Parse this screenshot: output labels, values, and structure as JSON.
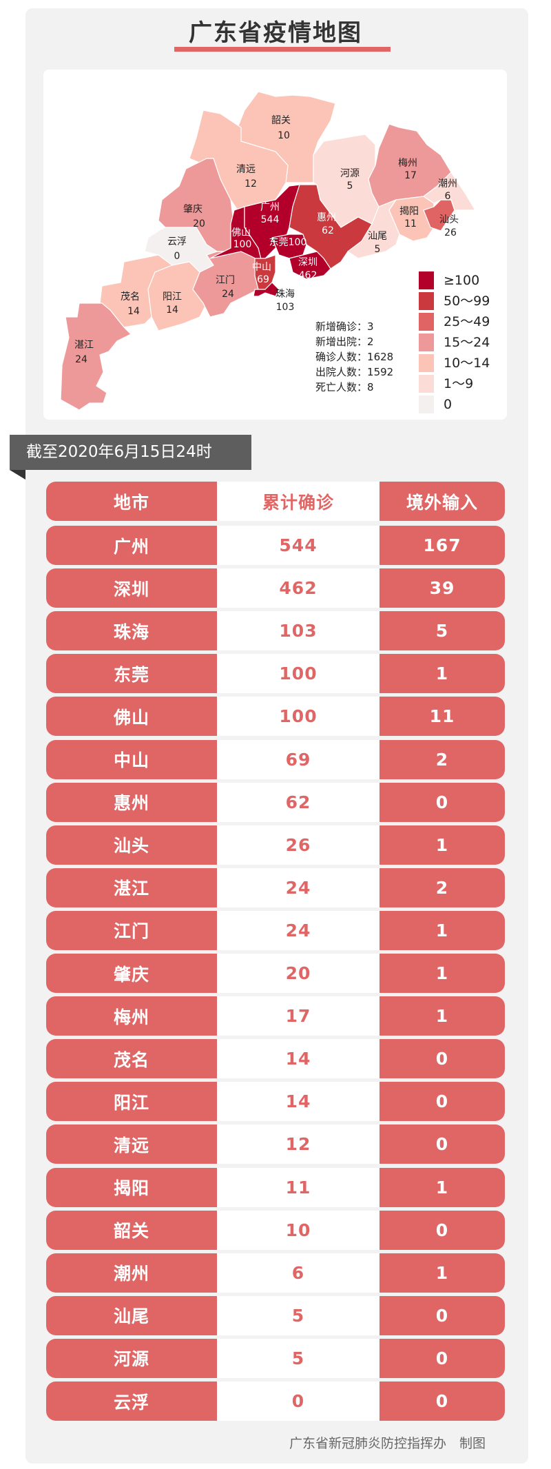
{
  "title": "广东省疫情地图",
  "map": {
    "regions": [
      {
        "name": "韶关",
        "value": "10"
      },
      {
        "name": "清远",
        "value": "12"
      },
      {
        "name": "肇庆",
        "value": "20"
      },
      {
        "name": "云浮",
        "value": "0"
      },
      {
        "name": "茂名",
        "value": "14"
      },
      {
        "name": "阳江",
        "value": "14"
      },
      {
        "name": "湛江",
        "value": "24"
      },
      {
        "name": "江门",
        "value": "24"
      },
      {
        "name": "佛山",
        "value": "100"
      },
      {
        "name": "广州",
        "value": "544"
      },
      {
        "name": "东莞",
        "value": "100"
      },
      {
        "name": "深圳",
        "value": "462"
      },
      {
        "name": "惠州",
        "value": "62"
      },
      {
        "name": "中山",
        "value": "69"
      },
      {
        "name": "珠海",
        "value": "103"
      },
      {
        "name": "河源",
        "value": "5"
      },
      {
        "name": "梅州",
        "value": "17"
      },
      {
        "name": "汕尾",
        "value": "5"
      },
      {
        "name": "揭阳",
        "value": "11"
      },
      {
        "name": "汕头",
        "value": "26"
      },
      {
        "name": "潮州",
        "value": "6"
      }
    ],
    "stats": [
      {
        "label": "新增确诊",
        "value": "3"
      },
      {
        "label": "新增出院",
        "value": "2"
      },
      {
        "label": "确诊人数",
        "value": "1628"
      },
      {
        "label": "出院人数",
        "value": "1592"
      },
      {
        "label": "死亡人数",
        "value": "8"
      }
    ],
    "legend": [
      {
        "label": "≥100",
        "color": "#b3002a"
      },
      {
        "label": "50～99",
        "color": "#c9393d"
      },
      {
        "label": "25～49",
        "color": "#e06464"
      },
      {
        "label": "15～24",
        "color": "#ee9999"
      },
      {
        "label": "10～14",
        "color": "#fbc4b6"
      },
      {
        "label": "1～9",
        "color": "#fbdcd6"
      },
      {
        "label": "0",
        "color": "#f4f0f0"
      }
    ]
  },
  "date_tag": "截至2020年6月15日24时",
  "table": {
    "headers": [
      "地市",
      "累计确诊",
      "境外输入"
    ],
    "rows": [
      [
        "广州",
        "544",
        "167"
      ],
      [
        "深圳",
        "462",
        "39"
      ],
      [
        "珠海",
        "103",
        "5"
      ],
      [
        "东莞",
        "100",
        "1"
      ],
      [
        "佛山",
        "100",
        "11"
      ],
      [
        "中山",
        "69",
        "2"
      ],
      [
        "惠州",
        "62",
        "0"
      ],
      [
        "汕头",
        "26",
        "1"
      ],
      [
        "湛江",
        "24",
        "2"
      ],
      [
        "江门",
        "24",
        "1"
      ],
      [
        "肇庆",
        "20",
        "1"
      ],
      [
        "梅州",
        "17",
        "1"
      ],
      [
        "茂名",
        "14",
        "0"
      ],
      [
        "阳江",
        "14",
        "0"
      ],
      [
        "清远",
        "12",
        "0"
      ],
      [
        "揭阳",
        "11",
        "1"
      ],
      [
        "韶关",
        "10",
        "0"
      ],
      [
        "潮州",
        "6",
        "1"
      ],
      [
        "汕尾",
        "5",
        "0"
      ],
      [
        "河源",
        "5",
        "0"
      ],
      [
        "云浮",
        "0",
        "0"
      ]
    ]
  },
  "footer": "广东省新冠肺炎防控指挥办　制图",
  "colors": {
    "accent": "#e06666",
    "card_bg": "#f2f2f2",
    "tag_bg": "#5e5e5e"
  }
}
